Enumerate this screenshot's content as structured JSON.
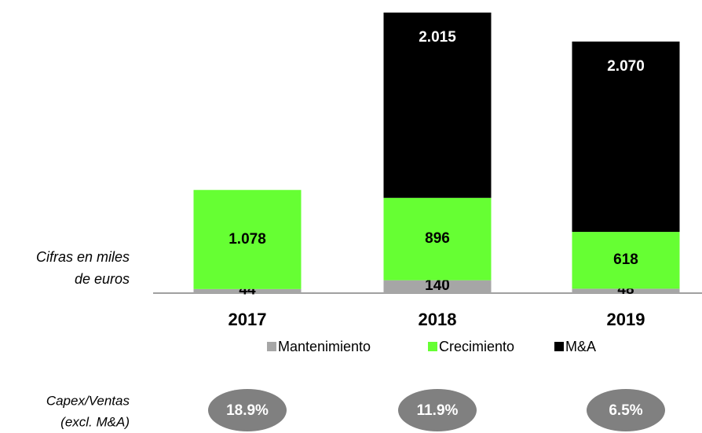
{
  "chart_data": {
    "type": "stacked_bar",
    "note": [
      "Cifras en miles",
      "de euros"
    ],
    "categories": [
      "2017",
      "2018",
      "2019"
    ],
    "series": [
      {
        "name": "Mantenimiento",
        "color": "#a6a6a6",
        "values": [
          44,
          140,
          48
        ]
      },
      {
        "name": "Crecimiento",
        "color": "#66ff33",
        "values": [
          1078,
          896,
          618
        ],
        "value_labels": [
          "1.078",
          "896",
          "618"
        ]
      },
      {
        "name": "M&A",
        "color": "#000000",
        "values": [
          null,
          2015,
          2070
        ],
        "value_labels": [
          null,
          "2.015",
          "2.070"
        ]
      }
    ],
    "ratio": {
      "label": [
        "Capex/Ventas",
        "(excl. M&A)"
      ],
      "values": [
        18.9,
        11.9,
        6.5
      ],
      "value_labels": [
        "18.9%",
        "11.9%",
        "6.5%"
      ]
    }
  }
}
